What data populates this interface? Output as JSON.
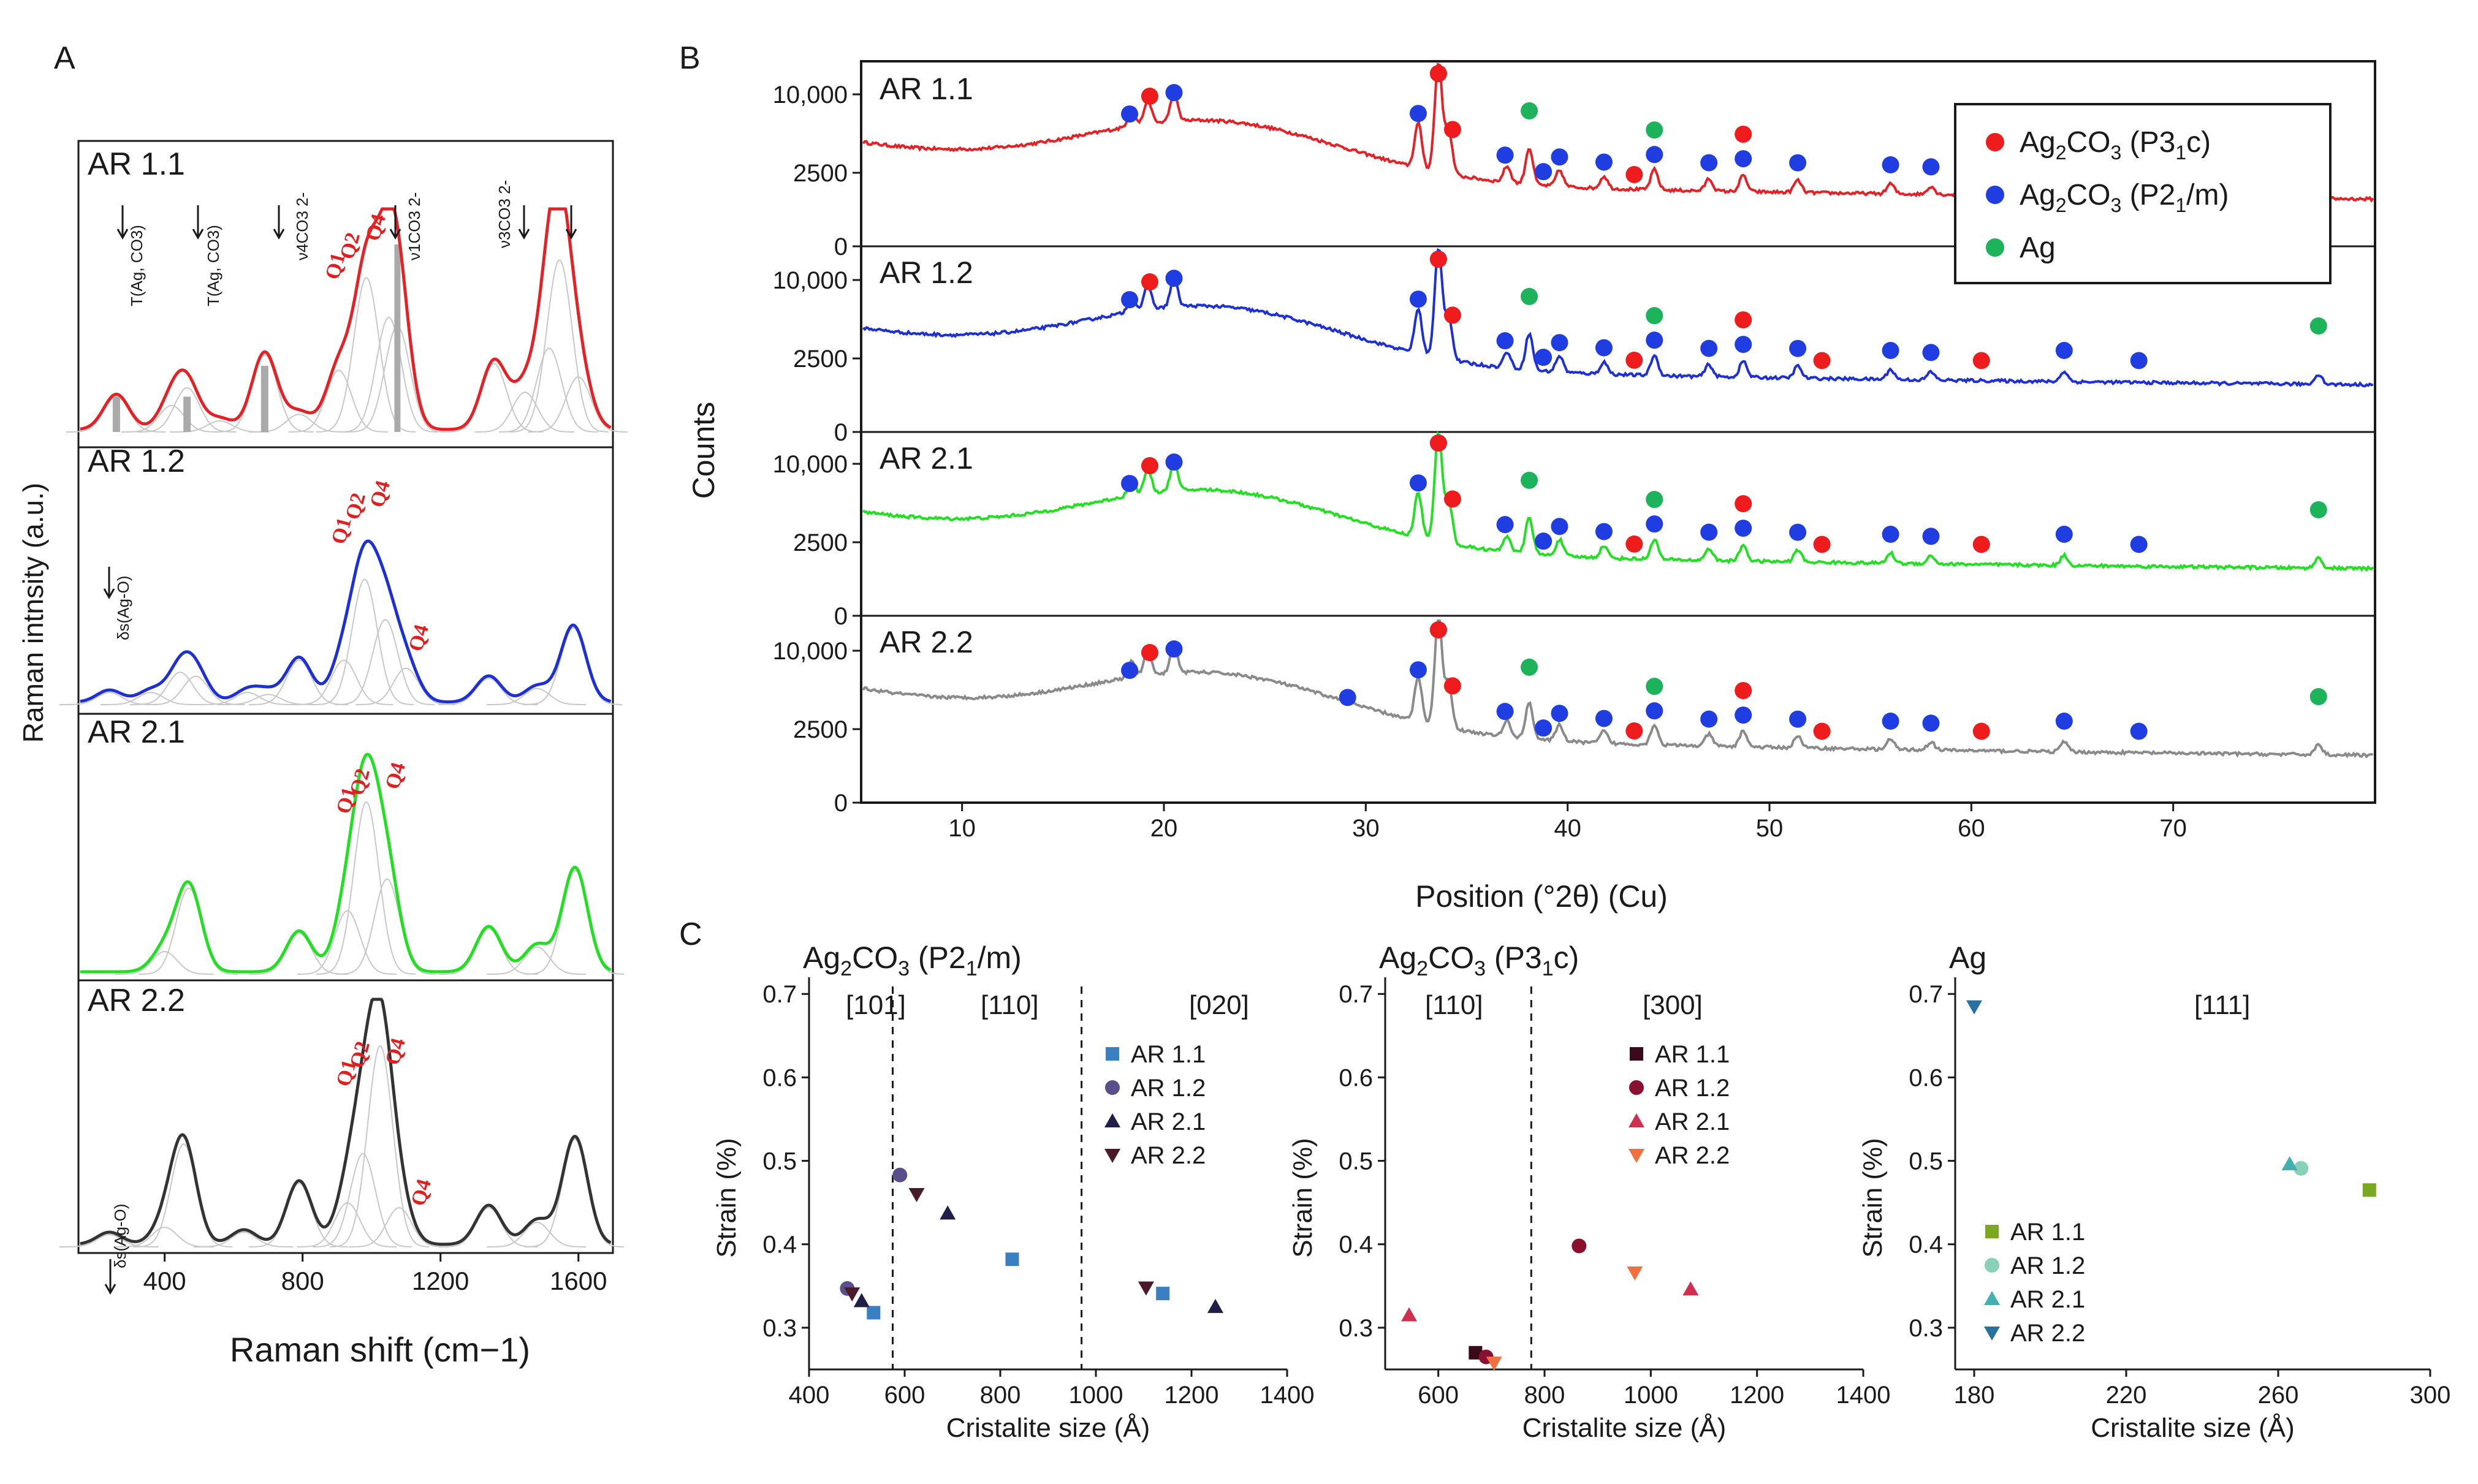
{
  "colors": {
    "red": "#e52125",
    "blue": "#1d2fd6",
    "green": "#21e021",
    "gray": "#8a8a8a",
    "dark": "#333333",
    "axis": "#1a1a1a",
    "gaussian": "#c8c8c8",
    "marker_red": "#ee1c1c",
    "marker_blue": "#1f3de0",
    "marker_green": "#1db35a"
  },
  "panels": {
    "a": "A",
    "b": "B",
    "c": "C"
  },
  "raman": {
    "ylabel": "Raman intnsity (a.u.)",
    "xlabel": "Raman shift (cm−1)",
    "xticks": [
      "400",
      "800",
      "1200",
      "1600"
    ],
    "samples": [
      "AR 1.1",
      "AR 1.2",
      "AR 2.1",
      "AR 2.2"
    ],
    "annot_11": [
      "T(Ag, CO3)",
      "T(Ag, CO3)",
      "ν4CO3 2-",
      "ν1CO3 2-",
      "ν3CO3 2-"
    ],
    "annot_12": "δs(Ag-O)",
    "annot_22": "δs(Ag-O)",
    "q": [
      "Q1",
      "Q2",
      "Q4"
    ]
  },
  "chart_data": [
    {
      "panel": "A",
      "type": "line",
      "title": "",
      "xlabel": "Raman shift (cm−1)",
      "ylabel": "Raman intnsity (a.u.)",
      "xlim": [
        150,
        1700
      ],
      "series": [
        {
          "name": "AR 1.1",
          "peaks": [
            [
              260,
              0.16
            ],
            [
              420,
              0.12
            ],
            [
              465,
              0.2
            ],
            [
              560,
              0.05
            ],
            [
              690,
              0.35
            ],
            [
              790,
              0.08
            ],
            [
              905,
              0.28
            ],
            [
              985,
              0.7
            ],
            [
              1050,
              0.52
            ],
            [
              1075,
              0.48
            ],
            [
              1355,
              0.31
            ],
            [
              1445,
              0.18
            ],
            [
              1515,
              0.38
            ],
            [
              1545,
              0.78
            ],
            [
              1600,
              0.25
            ]
          ]
        },
        {
          "name": "AR 1.2",
          "peaks": [
            [
              240,
              0.06
            ],
            [
              360,
              0.06
            ],
            [
              445,
              0.16
            ],
            [
              490,
              0.14
            ],
            [
              640,
              0.06
            ],
            [
              700,
              0.05
            ],
            [
              790,
              0.22
            ],
            [
              920,
              0.22
            ],
            [
              980,
              0.62
            ],
            [
              1040,
              0.42
            ],
            [
              1100,
              0.18
            ],
            [
              1340,
              0.13
            ],
            [
              1480,
              0.08
            ],
            [
              1585,
              0.38
            ]
          ]
        },
        {
          "name": "AR 2.1",
          "peaks": [
            [
              400,
              0.1
            ],
            [
              470,
              0.38
            ],
            [
              790,
              0.18
            ],
            [
              930,
              0.28
            ],
            [
              985,
              0.76
            ],
            [
              1045,
              0.42
            ],
            [
              1340,
              0.2
            ],
            [
              1480,
              0.12
            ],
            [
              1590,
              0.46
            ]
          ]
        },
        {
          "name": "AR 2.2",
          "peaks": [
            [
              240,
              0.05
            ],
            [
              400,
              0.08
            ],
            [
              455,
              0.42
            ],
            [
              630,
              0.06
            ],
            [
              790,
              0.26
            ],
            [
              930,
              0.18
            ],
            [
              975,
              0.38
            ],
            [
              1025,
              0.82
            ],
            [
              1080,
              0.16
            ],
            [
              1340,
              0.16
            ],
            [
              1480,
              0.1
            ],
            [
              1590,
              0.44
            ]
          ]
        }
      ]
    },
    {
      "panel": "B",
      "type": "line",
      "xlabel": "Position (°2θ) (Cu)",
      "ylabel": "Counts",
      "xlim": [
        5,
        80
      ],
      "xticks": [
        "10",
        "20",
        "30",
        "40",
        "50",
        "60",
        "70"
      ],
      "ytick_labels": [
        "0",
        "2500",
        "10,000"
      ],
      "legend": [
        {
          "label": "Ag2CO3 (P31c)",
          "color": "red"
        },
        {
          "label": "Ag2CO3 (P21/m)",
          "color": "blue"
        },
        {
          "label": "Ag",
          "color": "green"
        }
      ],
      "legend_text": {
        "formula": "Ag",
        "sub2": "2",
        "co": "CO",
        "sub3": "3",
        "p31c_a": " (P3",
        "p31c_sub": "1",
        "p31c_b": "c)",
        "p21m_a": " (P2",
        "p21m_sub": "1",
        "p21m_b": "/m)",
        "ag": "Ag"
      },
      "samples": [
        "AR 1.1",
        "AR 1.2",
        "AR 2.1",
        "AR 2.2"
      ],
      "peaks": [
        [
          18.4,
          0.08
        ],
        [
          19.2,
          0.12
        ],
        [
          20.5,
          0.14
        ],
        [
          32.6,
          0.22
        ],
        [
          33.6,
          0.55
        ],
        [
          34.1,
          0.22
        ],
        [
          37.0,
          0.08
        ],
        [
          38.1,
          0.18
        ],
        [
          39.6,
          0.08
        ],
        [
          41.8,
          0.06
        ],
        [
          44.3,
          0.1
        ],
        [
          47.0,
          0.06
        ],
        [
          48.7,
          0.08
        ],
        [
          51.4,
          0.06
        ],
        [
          56.0,
          0.05
        ],
        [
          58.0,
          0.04
        ],
        [
          64.6,
          0.05
        ],
        [
          77.2,
          0.05
        ]
      ],
      "markers": [
        {
          "sample": "AR 1.1",
          "red": [
            19.3,
            33.6,
            34.3,
            43.3,
            48.7
          ],
          "blue": [
            18.3,
            20.5,
            32.6,
            33.6,
            36.9,
            38.8,
            39.6,
            41.8,
            44.3,
            47.0,
            48.7,
            51.4,
            56.0,
            58.0
          ],
          "green": [
            38.1,
            44.3
          ]
        },
        {
          "sample": "AR 1.2",
          "red": [
            19.3,
            33.6,
            34.3,
            43.3,
            48.7,
            52.6,
            60.5
          ],
          "blue": [
            18.3,
            20.5,
            32.6,
            33.6,
            36.9,
            38.8,
            39.6,
            41.8,
            44.3,
            47.0,
            48.7,
            51.4,
            56.0,
            58.0,
            64.6,
            68.3
          ],
          "green": [
            38.1,
            44.3,
            77.2
          ]
        },
        {
          "sample": "AR 2.1",
          "red": [
            19.3,
            33.6,
            34.3,
            43.3,
            48.7,
            52.6,
            60.5
          ],
          "blue": [
            18.3,
            20.5,
            32.6,
            33.6,
            36.9,
            38.8,
            39.6,
            41.8,
            44.3,
            47.0,
            48.7,
            51.4,
            56.0,
            58.0,
            64.6,
            68.3
          ],
          "green": [
            38.1,
            44.3,
            77.2
          ]
        },
        {
          "sample": "AR 2.2",
          "red": [
            19.3,
            33.6,
            34.3,
            43.3,
            48.7,
            52.6,
            60.5
          ],
          "blue": [
            18.3,
            20.5,
            29.1,
            32.6,
            33.6,
            36.9,
            38.8,
            39.6,
            41.8,
            44.3,
            47.0,
            48.7,
            51.4,
            56.0,
            58.0,
            64.6,
            68.3
          ],
          "green": [
            38.1,
            44.3,
            77.2
          ]
        }
      ]
    },
    {
      "panel": "C1",
      "type": "scatter",
      "title": "Ag2CO3 (P21/m)",
      "title_parts": [
        "Ag",
        "2",
        "CO",
        "3",
        " (P2",
        "1",
        "/m)"
      ],
      "xlabel": "Cristalite size (Å)",
      "ylabel": "Strain (%)",
      "xlim": [
        400,
        1400
      ],
      "ylim": [
        0.25,
        0.72
      ],
      "xticks": [
        "400",
        "600",
        "800",
        "1000",
        "1200",
        "1400"
      ],
      "yticks": [
        "0.3",
        "0.4",
        "0.5",
        "0.6",
        "0.7"
      ],
      "dividers": [
        575,
        970
      ],
      "regions": [
        "[101]",
        "[110]",
        "[020]"
      ],
      "series": [
        {
          "name": "AR 1.1",
          "marker": "square",
          "color": "#3a7fbf",
          "points": [
            [
              535,
              0.318
            ],
            [
              825,
              0.382
            ],
            [
              1140,
              0.341
            ]
          ]
        },
        {
          "name": "AR 1.2",
          "marker": "circle",
          "color": "#5a4f8a",
          "points": [
            [
              480,
              0.347
            ],
            [
              590,
              0.483
            ]
          ]
        },
        {
          "name": "AR 2.1",
          "marker": "triangle-up",
          "color": "#1f1f4a",
          "points": [
            [
              510,
              0.332
            ],
            [
              690,
              0.437
            ],
            [
              1250,
              0.325
            ]
          ]
        },
        {
          "name": "AR 2.2",
          "marker": "triangle-down",
          "color": "#4a1a2a",
          "points": [
            [
              490,
              0.341
            ],
            [
              625,
              0.46
            ],
            [
              1105,
              0.348
            ]
          ]
        }
      ]
    },
    {
      "panel": "C2",
      "type": "scatter",
      "title": "Ag2CO3 (P31c)",
      "title_parts": [
        "Ag",
        "2",
        "CO",
        "3",
        " (P3",
        "1",
        "c)"
      ],
      "xlabel": "Cristalite size (Å)",
      "ylabel": "Strain (%)",
      "xlim": [
        500,
        1400
      ],
      "ylim": [
        0.25,
        0.72
      ],
      "xticks": [
        "600",
        "800",
        "1000",
        "1200",
        "1400"
      ],
      "yticks": [
        "0.3",
        "0.4",
        "0.5",
        "0.6",
        "0.7"
      ],
      "dividers": [
        775
      ],
      "regions": [
        "[110]",
        "[300]"
      ],
      "series": [
        {
          "name": "AR 1.1",
          "marker": "square",
          "color": "#3a0a1a",
          "points": [
            [
              670,
              0.27
            ]
          ]
        },
        {
          "name": "AR 1.2",
          "marker": "circle",
          "color": "#8a1030",
          "points": [
            [
              690,
              0.265
            ],
            [
              865,
              0.398
            ]
          ]
        },
        {
          "name": "AR 2.1",
          "marker": "triangle-up",
          "color": "#d03050",
          "points": [
            [
              545,
              0.315
            ],
            [
              1075,
              0.346
            ]
          ]
        },
        {
          "name": "AR 2.2",
          "marker": "triangle-down",
          "color": "#f07040",
          "points": [
            [
              705,
              0.258
            ],
            [
              970,
              0.366
            ]
          ]
        }
      ]
    },
    {
      "panel": "C3",
      "type": "scatter",
      "title": "Ag",
      "xlabel": "Cristalite size (Å)",
      "ylabel": "Strain (%)",
      "xlim": [
        175,
        300
      ],
      "ylim": [
        0.25,
        0.72
      ],
      "xticks": [
        "180",
        "220",
        "260",
        "300"
      ],
      "yticks": [
        "0.3",
        "0.4",
        "0.5",
        "0.6",
        "0.7"
      ],
      "dividers": [],
      "regions": [
        "[111]"
      ],
      "series": [
        {
          "name": "AR 1.1",
          "marker": "square",
          "color": "#7aa822",
          "points": [
            [
              284,
              0.465
            ]
          ]
        },
        {
          "name": "AR 1.2",
          "marker": "circle",
          "color": "#88d0b8",
          "points": [
            [
              266,
              0.491
            ]
          ]
        },
        {
          "name": "AR 2.1",
          "marker": "triangle-up",
          "color": "#40b0b0",
          "points": [
            [
              263,
              0.496
            ]
          ]
        },
        {
          "name": "AR 2.2",
          "marker": "triangle-down",
          "color": "#2a70a0",
          "points": [
            [
              180,
              0.685
            ]
          ]
        }
      ]
    }
  ]
}
